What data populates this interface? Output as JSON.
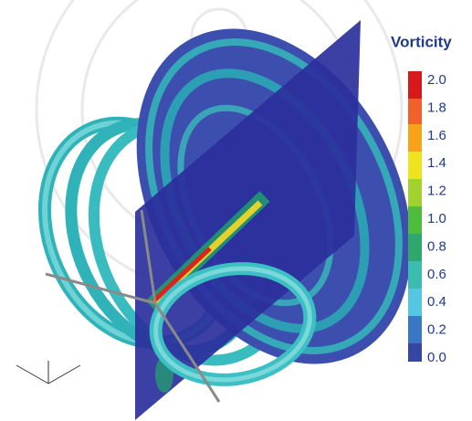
{
  "legend": {
    "title": "Vorticity",
    "ticks": [
      "2.0",
      "1.8",
      "1.6",
      "1.4",
      "1.2",
      "1.0",
      "0.8",
      "0.6",
      "0.4",
      "0.2",
      "0.0"
    ]
  }
}
